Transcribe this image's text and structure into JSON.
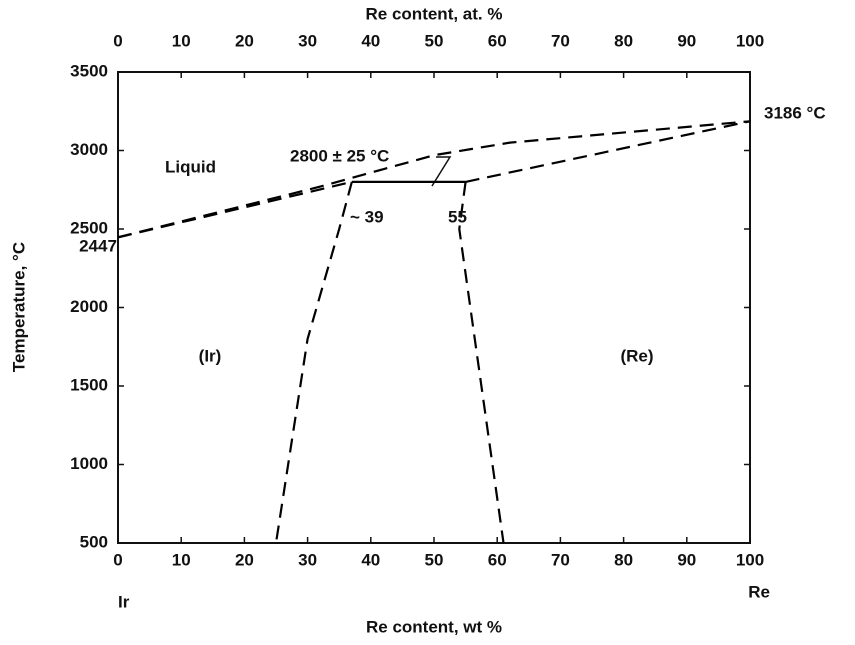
{
  "chart_data": {
    "type": "phase_diagram",
    "top_axis_label": "Re content, at. %",
    "x_label": "Re content, wt %",
    "y_label": "Temperature, °C",
    "xlim": [
      0,
      100
    ],
    "xticks": [
      0,
      10,
      20,
      30,
      40,
      50,
      60,
      70,
      80,
      90,
      100
    ],
    "x2lim": [
      0,
      100
    ],
    "x2ticks": [
      0,
      10,
      20,
      30,
      40,
      50,
      60,
      70,
      80,
      90,
      100
    ],
    "ylim": [
      500,
      3500
    ],
    "yticks": [
      500,
      1000,
      1500,
      2000,
      2500,
      3000,
      3500
    ],
    "grid": false,
    "color": "#000000",
    "series": [
      {
        "x": [
          0,
          32,
          50,
          62,
          100
        ],
        "values": [
          2447,
          2770,
          2970,
          3050,
          3186
        ],
        "dashed": true
      },
      {
        "x": [
          0,
          37
        ],
        "values": [
          2447,
          2800
        ],
        "dashed": true
      },
      {
        "x": [
          55,
          100
        ],
        "values": [
          2800,
          3186
        ],
        "dashed": true
      },
      {
        "x": [
          37,
          35,
          30,
          25
        ],
        "values": [
          2800,
          2500,
          1800,
          500
        ],
        "dashed": true
      },
      {
        "x": [
          55,
          54,
          61
        ],
        "values": [
          2800,
          2500,
          500
        ],
        "dashed": true
      },
      {
        "x": [
          37,
          55
        ],
        "values": [
          2800,
          2800
        ],
        "dashed": false
      }
    ],
    "annotations": [
      "Liquid",
      "(Ir)",
      "(Re)",
      "~ 39",
      "55",
      "2800 ± 25 °C",
      "3186 °C",
      "2447",
      "Ir",
      "Re"
    ]
  }
}
